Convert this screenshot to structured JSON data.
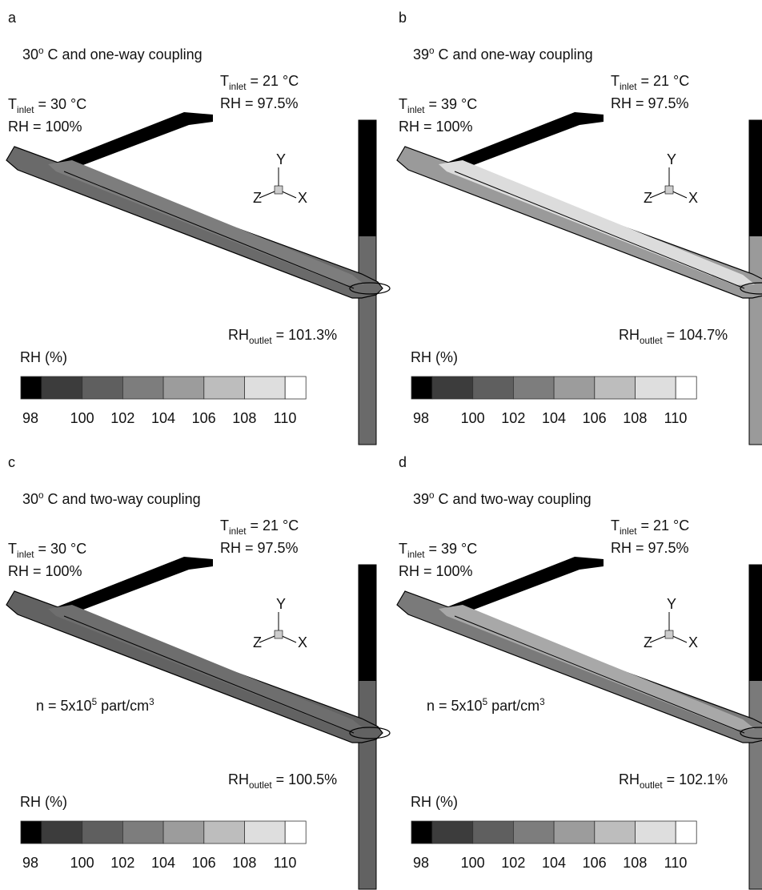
{
  "triad": {
    "y": "Y",
    "z": "Z",
    "x": "X"
  },
  "colorbar": {
    "label": "RH (%)",
    "ticks": [
      98,
      100,
      102,
      104,
      106,
      108,
      110
    ],
    "colors": [
      "#000000",
      "#3c3c3c",
      "#5f5f5f",
      "#7d7d7d",
      "#9c9c9c",
      "#bdbdbd",
      "#dedede",
      "#ffffff"
    ]
  },
  "panels": [
    {
      "letter": "a",
      "title": {
        "a": "30",
        "sup": "o",
        "b": " C and one-way coupling"
      },
      "inlet_left": {
        "a": "T",
        "sub": "inlet",
        "b": " = 30 °C"
      },
      "rh_left": "RH = 100%",
      "inlet_right": {
        "a": "T",
        "sub": "inlet",
        "b": " = 21 °C"
      },
      "rh_right": "RH = 97.5%",
      "outlet": {
        "a": "RH",
        "sub": "outlet",
        "b": " = 101.3%"
      },
      "pipe_color": "#6a6a6a",
      "core_color": "#7d7d7d"
    },
    {
      "letter": "b",
      "title": {
        "a": "39",
        "sup": "o",
        "b": " C and one-way coupling"
      },
      "inlet_left": {
        "a": "T",
        "sub": "inlet",
        "b": " = 39 °C"
      },
      "rh_left": "RH = 100%",
      "inlet_right": {
        "a": "T",
        "sub": "inlet",
        "b": " = 21 °C"
      },
      "rh_right": "RH = 97.5%",
      "outlet": {
        "a": "RH",
        "sub": "outlet",
        "b": " = 104.7%"
      },
      "pipe_color": "#9a9a9a",
      "core_color": "#dcdcdc"
    },
    {
      "letter": "c",
      "title": {
        "a": "30",
        "sup": "o",
        "b": " C and two-way coupling"
      },
      "inlet_left": {
        "a": "T",
        "sub": "inlet",
        "b": " = 30 °C"
      },
      "rh_left": "RH = 100%",
      "inlet_right": {
        "a": "T",
        "sub": "inlet",
        "b": " = 21 °C"
      },
      "rh_right": "RH = 97.5%",
      "outlet": {
        "a": "RH",
        "sub": "outlet",
        "b": " = 100.5%"
      },
      "particles": {
        "a": "n = 5x10",
        "sup": "5",
        "b": " part/cm",
        "sup2": "3"
      },
      "pipe_color": "#626262",
      "core_color": "#6e6e6e"
    },
    {
      "letter": "d",
      "title": {
        "a": "39",
        "sup": "o",
        "b": " C and two-way coupling"
      },
      "inlet_left": {
        "a": "T",
        "sub": "inlet",
        "b": " = 39 °C"
      },
      "rh_left": "RH = 100%",
      "inlet_right": {
        "a": "T",
        "sub": "inlet",
        "b": " = 21 °C"
      },
      "rh_right": "RH = 97.5%",
      "outlet": {
        "a": "RH",
        "sub": "outlet",
        "b": " = 102.1%"
      },
      "particles": {
        "a": "n = 5x10",
        "sup": "5",
        "b": " part/cm",
        "sup2": "3"
      },
      "pipe_color": "#7a7a7a",
      "core_color": "#a8a8a8"
    }
  ]
}
